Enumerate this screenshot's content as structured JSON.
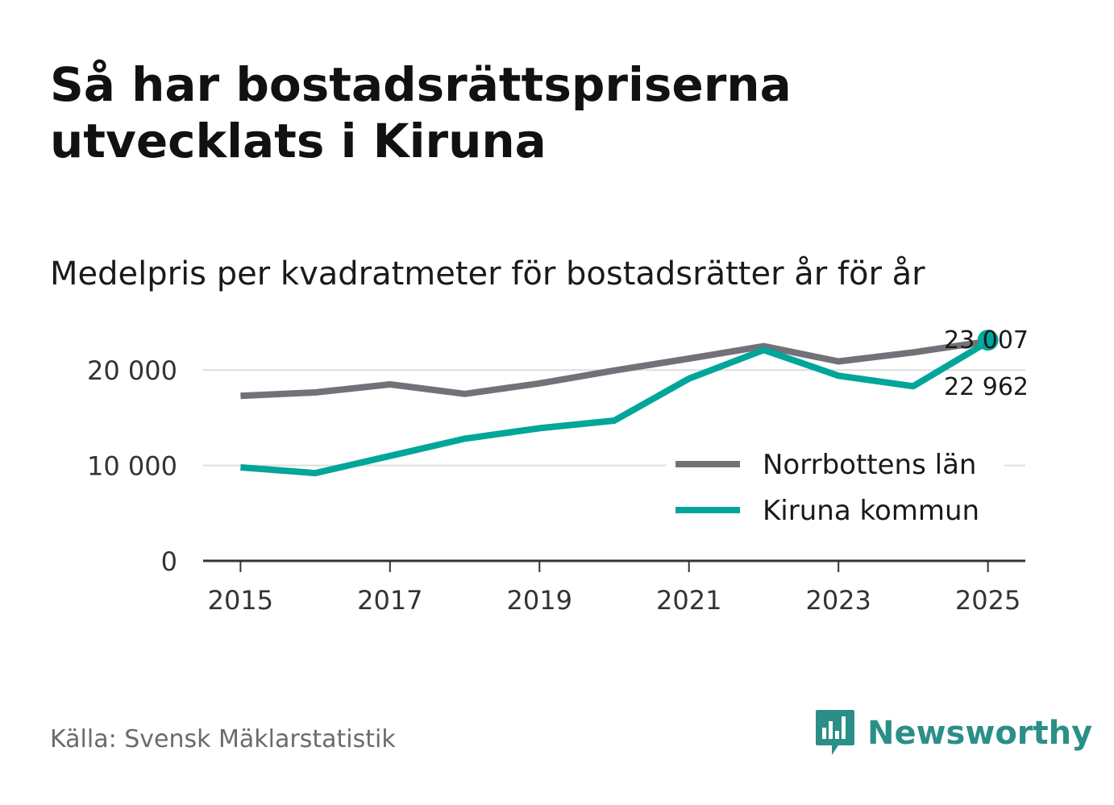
{
  "title": "Så har bostadsrättspriserna utvecklats i Kiruna",
  "subtitle": "Medelpris per kvadratmeter för bostadsrätter år för år",
  "source": "Källa: Svensk Mäklarstatistik",
  "brand": {
    "name": "Newsworthy",
    "icon": "bar-chart-speech-bubble-icon",
    "color": "#2b8f88"
  },
  "chart_data": {
    "type": "line",
    "title": "Medelpris per kvadratmeter för bostadsrätter år för år",
    "x": [
      2015,
      2016,
      2017,
      2018,
      2019,
      2020,
      2021,
      2022,
      2023,
      2024,
      2025
    ],
    "xlim": [
      2014.5,
      2025.5
    ],
    "x_ticks": [
      2015,
      2017,
      2019,
      2021,
      2023,
      2025
    ],
    "x_tick_labels": [
      "2015",
      "2017",
      "2019",
      "2021",
      "2023",
      "2025"
    ],
    "ylim": [
      0,
      25000
    ],
    "y_ticks": [
      0,
      10000,
      20000
    ],
    "y_tick_labels": [
      "0",
      "10 000",
      "20 000"
    ],
    "grid": true,
    "legend_position": "center-right",
    "series": [
      {
        "name": "Norrbottens län",
        "color": "#737177",
        "values": [
          17300,
          17650,
          18500,
          17500,
          18600,
          19950,
          21200,
          22500,
          20900,
          21850,
          23007
        ],
        "end_label": "23 007"
      },
      {
        "name": "Kiruna kommun",
        "color": "#00a699",
        "values": [
          9800,
          9200,
          11000,
          12800,
          13900,
          14700,
          19100,
          22100,
          19400,
          18300,
          22962
        ],
        "end_label": "22 962"
      }
    ]
  }
}
